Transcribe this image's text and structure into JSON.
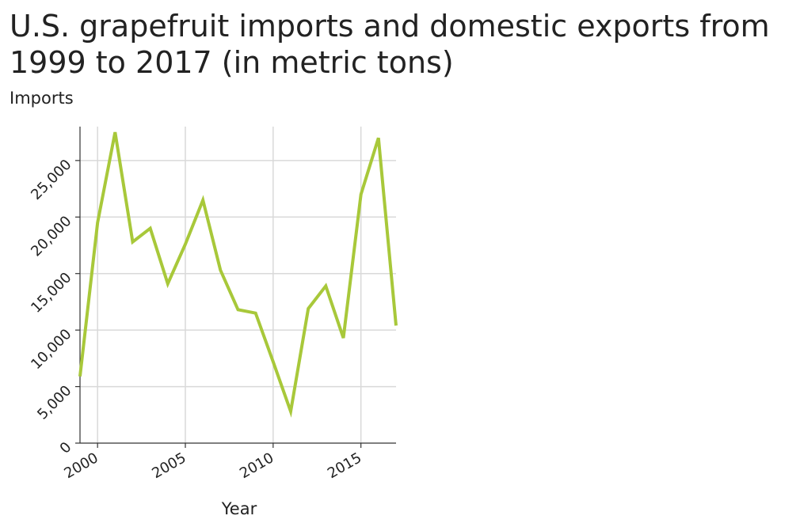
{
  "chart_data": {
    "type": "line",
    "title": "U.S. grapefruit imports and domestic exports from 1999 to 2017 (in metric tons)",
    "ylabel": "Imports",
    "xlabel": "Year",
    "xlim": [
      1999,
      2017
    ],
    "ylim": [
      0,
      28000
    ],
    "x_ticks": [
      2000,
      2005,
      2010,
      2015
    ],
    "x_tick_labels": [
      "2000",
      "2005",
      "2010",
      "2015"
    ],
    "y_ticks": [
      0,
      5000,
      10000,
      15000,
      20000,
      25000
    ],
    "y_tick_labels": [
      "0",
      "5,000",
      "10,000",
      "15,000",
      "20,000",
      "25,000"
    ],
    "grid": true,
    "series_color": "#a8c83a",
    "series": [
      {
        "x": [
          1999,
          2000,
          2001,
          2002,
          2003,
          2004,
          2005,
          2006,
          2007,
          2008,
          2009,
          2010,
          2011,
          2012,
          2013,
          2014,
          2015,
          2016,
          2017
        ],
        "values": [
          5900,
          19500,
          27500,
          17800,
          19000,
          14100,
          17600,
          21500,
          15300,
          11800,
          11500,
          7200,
          2800,
          11900,
          13900,
          9300,
          22000,
          27000,
          10400
        ]
      }
    ]
  }
}
